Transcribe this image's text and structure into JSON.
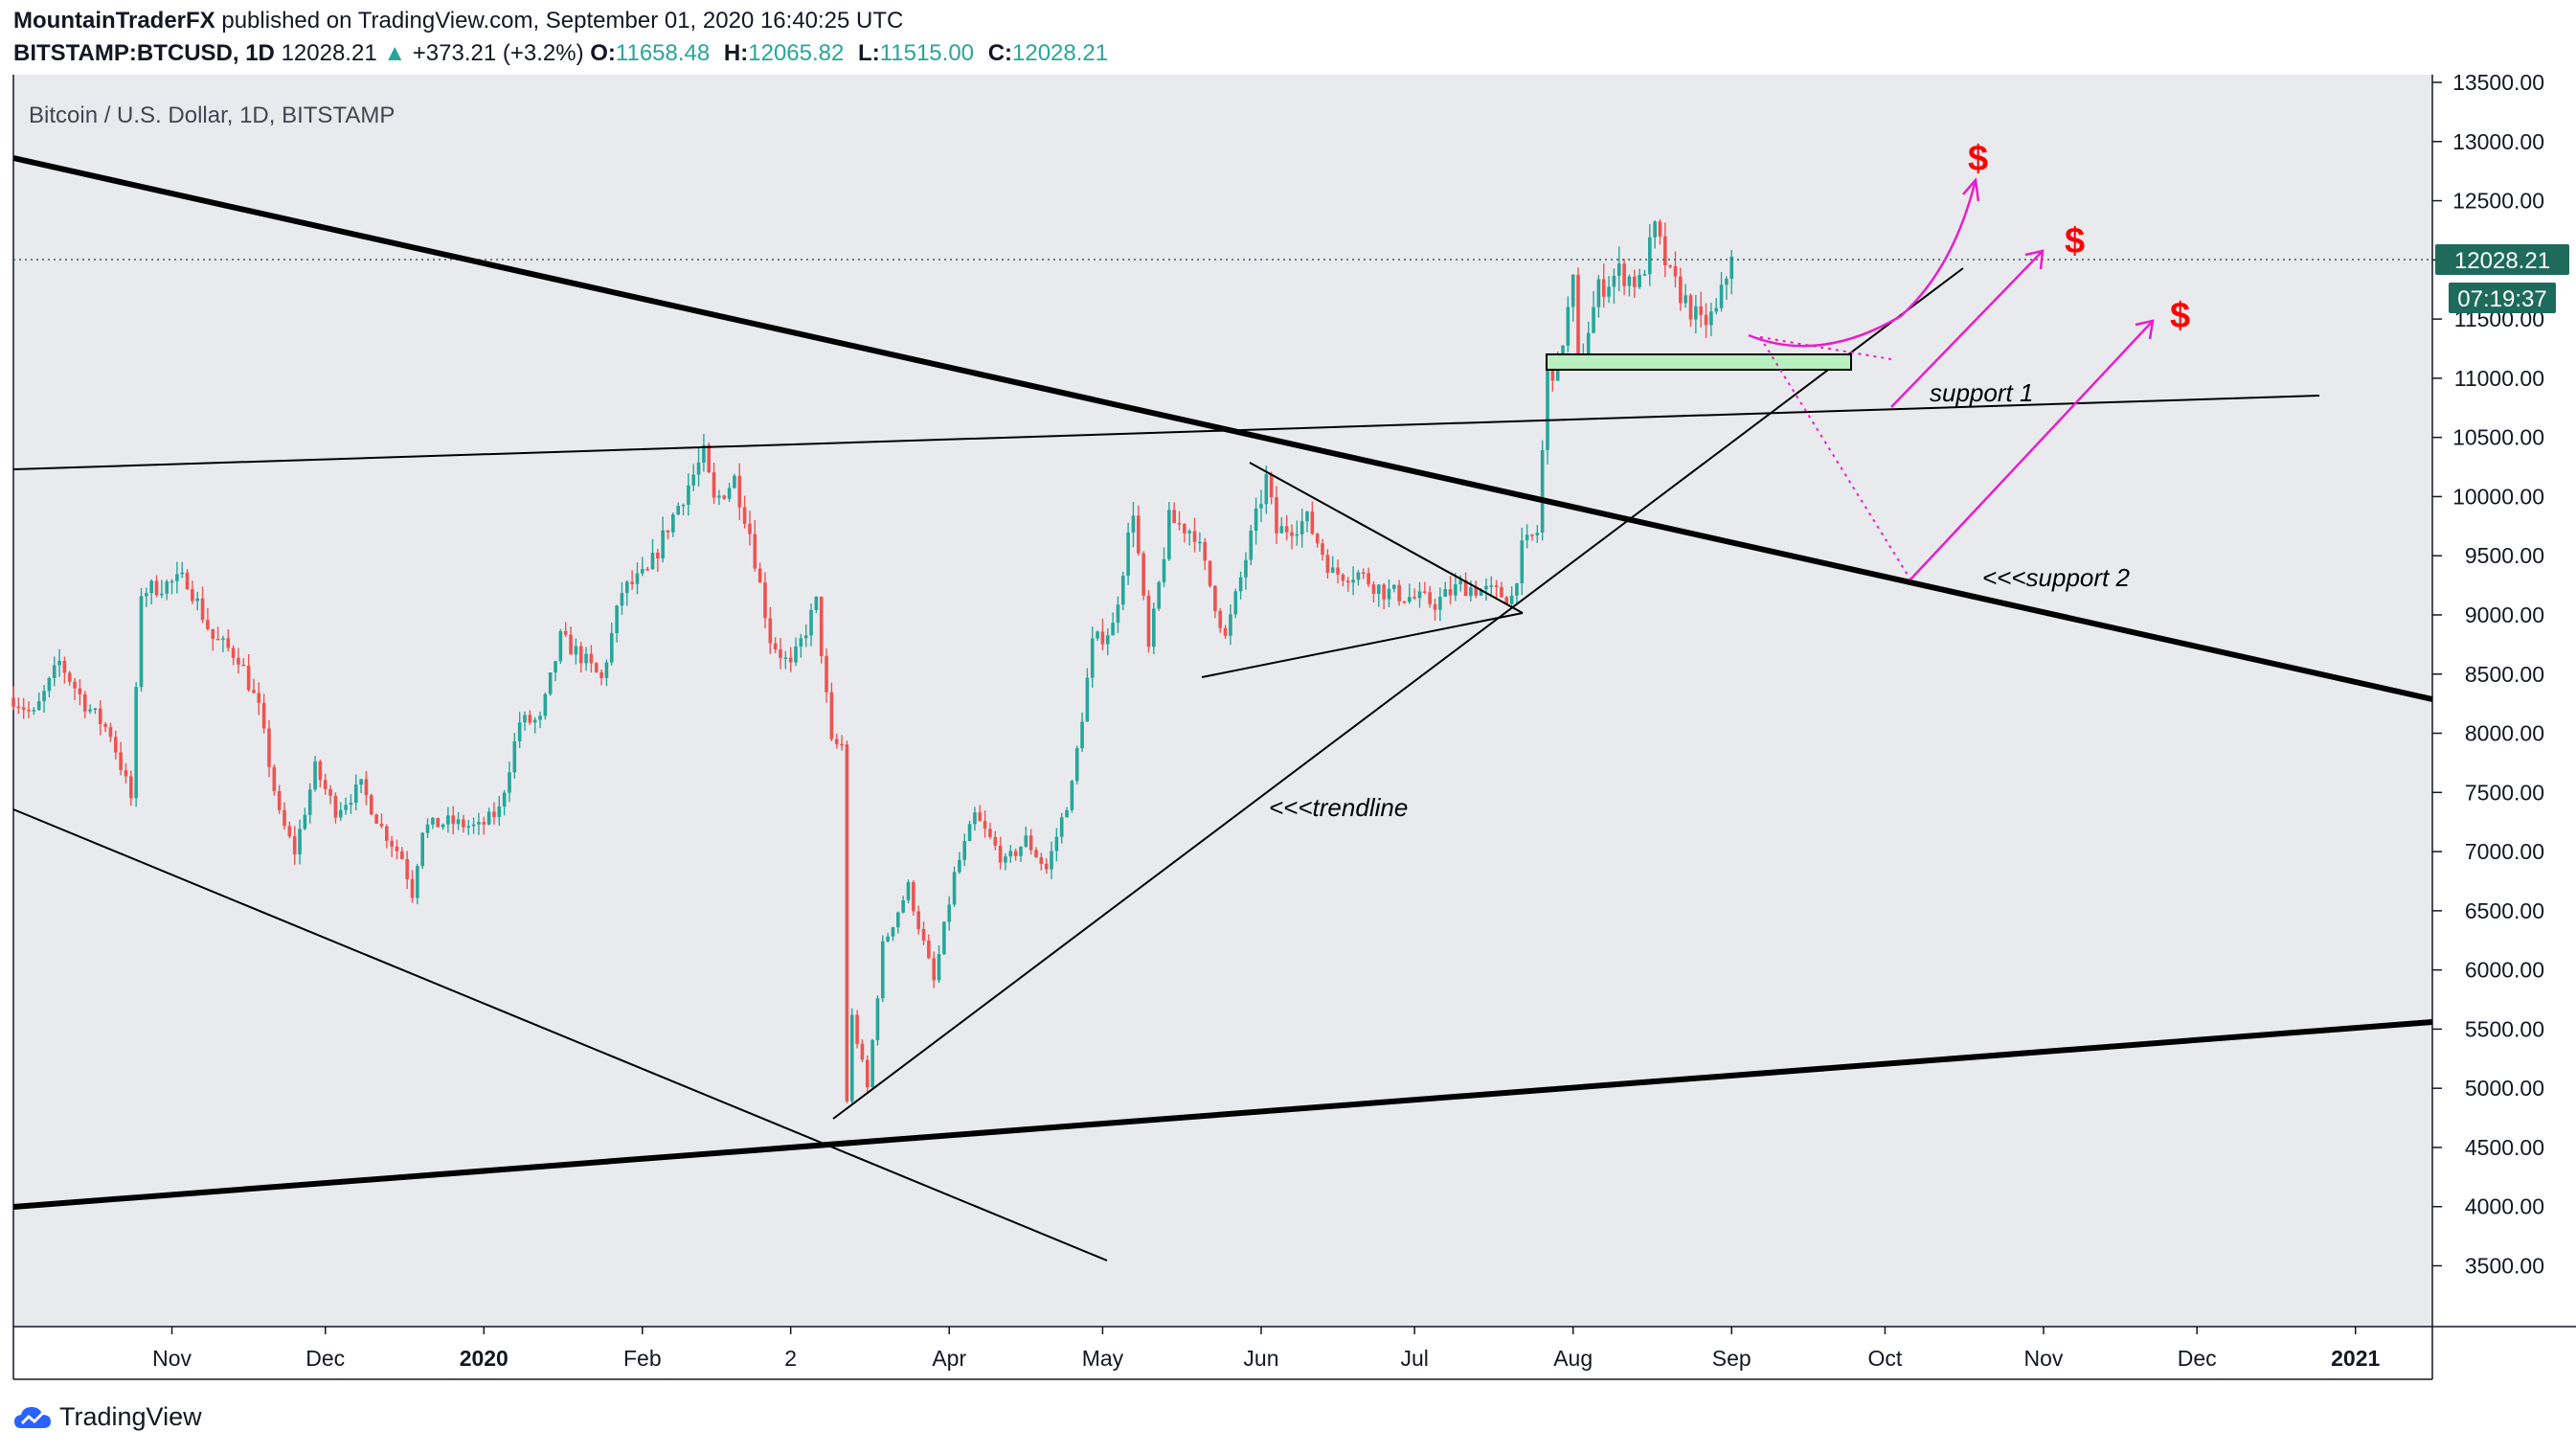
{
  "header": {
    "author": "MountainTraderFX",
    "published_text": "published on TradingView.com, September 01, 2020 16:40:25 UTC",
    "symbol": "BITSTAMP:BTCUSD, 1D",
    "last": "12028.21",
    "change": "+373.21 (+3.2%)",
    "open_label": "O:",
    "open": "11658.48",
    "high_label": "H:",
    "high": "12065.82",
    "low_label": "L:",
    "low": "11515.00",
    "close_label": "C:",
    "close": "12028.21"
  },
  "footer": {
    "brand": "TradingView"
  },
  "colors": {
    "background": "#e9eaee",
    "up": "#26a69a",
    "down": "#ef5350",
    "price_line": "#1e6b5c",
    "magenta": "#e91ec8",
    "target": "#ff0000",
    "support_zone": "#b9f0c0"
  },
  "chart_data": {
    "type": "candlestick",
    "title": "Bitcoin / U.S. Dollar, 1D, BITSTAMP",
    "ylim": [
      3000,
      13700
    ],
    "y_ticks": [
      "13500.00",
      "13000.00",
      "12500.00",
      "12000.00",
      "11500.00",
      "11000.00",
      "10500.00",
      "10000.00",
      "9500.00",
      "9000.00",
      "8500.00",
      "8000.00",
      "7500.00",
      "7000.00",
      "6500.00",
      "6000.00",
      "5500.00",
      "5000.00",
      "4500.00",
      "4000.00",
      "3500.00"
    ],
    "x_ticks": [
      "Nov",
      "Dec",
      "2020",
      "Feb",
      "2",
      "Apr",
      "May",
      "Jun",
      "Jul",
      "Aug",
      "Sep",
      "Oct",
      "Nov",
      "Dec",
      "2021"
    ],
    "last_price_label": "12028.21",
    "countdown_label": "07:19:37",
    "annotations": {
      "support1": "support 1",
      "support2": "<<<support 2",
      "trendline": "<<<trendline",
      "target": "$"
    },
    "price_path": [
      [
        "2019-10-01",
        8300
      ],
      [
        "2019-10-05",
        8150
      ],
      [
        "2019-10-10",
        8600
      ],
      [
        "2019-10-15",
        8250
      ],
      [
        "2019-10-20",
        8000
      ],
      [
        "2019-10-24",
        7450
      ],
      [
        "2019-10-26",
        9200
      ],
      [
        "2019-10-30",
        9250
      ],
      [
        "2019-11-04",
        9300
      ],
      [
        "2019-11-09",
        8800
      ],
      [
        "2019-11-14",
        8650
      ],
      [
        "2019-11-18",
        8200
      ],
      [
        "2019-11-22",
        7300
      ],
      [
        "2019-11-25",
        7000
      ],
      [
        "2019-11-29",
        7700
      ],
      [
        "2019-12-03",
        7350
      ],
      [
        "2019-12-08",
        7550
      ],
      [
        "2019-12-12",
        7200
      ],
      [
        "2019-12-16",
        6950
      ],
      [
        "2019-12-18",
        6650
      ],
      [
        "2019-12-20",
        7200
      ],
      [
        "2019-12-25",
        7250
      ],
      [
        "2019-12-31",
        7200
      ],
      [
        "2020-01-04",
        7350
      ],
      [
        "2020-01-08",
        8100
      ],
      [
        "2020-01-12",
        8100
      ],
      [
        "2020-01-16",
        8800
      ],
      [
        "2020-01-20",
        8650
      ],
      [
        "2020-01-24",
        8450
      ],
      [
        "2020-01-28",
        9200
      ],
      [
        "2020-02-02",
        9350
      ],
      [
        "2020-02-06",
        9750
      ],
      [
        "2020-02-10",
        10100
      ],
      [
        "2020-02-13",
        10350
      ],
      [
        "2020-02-15",
        9950
      ],
      [
        "2020-02-19",
        10150
      ],
      [
        "2020-02-22",
        9700
      ],
      [
        "2020-02-26",
        8800
      ],
      [
        "2020-03-01",
        8550
      ],
      [
        "2020-03-06",
        9100
      ],
      [
        "2020-03-09",
        7900
      ],
      [
        "2020-03-11",
        7900
      ],
      [
        "2020-03-12",
        4900
      ],
      [
        "2020-03-13",
        5600
      ],
      [
        "2020-03-16",
        5000
      ],
      [
        "2020-03-19",
        6200
      ],
      [
        "2020-03-24",
        6700
      ],
      [
        "2020-03-29",
        5900
      ],
      [
        "2020-04-02",
        6800
      ],
      [
        "2020-04-06",
        7300
      ],
      [
        "2020-04-12",
        6900
      ],
      [
        "2020-04-16",
        7100
      ],
      [
        "2020-04-20",
        6850
      ],
      [
        "2020-04-25",
        7550
      ],
      [
        "2020-04-29",
        8750
      ],
      [
        "2020-05-03",
        8900
      ],
      [
        "2020-05-07",
        9900
      ],
      [
        "2020-05-10",
        8700
      ],
      [
        "2020-05-14",
        9800
      ],
      [
        "2020-05-19",
        9700
      ],
      [
        "2020-05-25",
        8800
      ],
      [
        "2020-05-30",
        9650
      ],
      [
        "2020-06-02",
        10150
      ],
      [
        "2020-06-04",
        9700
      ],
      [
        "2020-06-10",
        9800
      ],
      [
        "2020-06-15",
        9350
      ],
      [
        "2020-06-20",
        9350
      ],
      [
        "2020-06-25",
        9200
      ],
      [
        "2020-06-30",
        9150
      ],
      [
        "2020-07-05",
        9100
      ],
      [
        "2020-07-10",
        9250
      ],
      [
        "2020-07-15",
        9200
      ],
      [
        "2020-07-20",
        9150
      ],
      [
        "2020-07-22",
        9550
      ],
      [
        "2020-07-25",
        9700
      ],
      [
        "2020-07-27",
        11050
      ],
      [
        "2020-07-29",
        11100
      ],
      [
        "2020-08-01",
        11800
      ],
      [
        "2020-08-02",
        11100
      ],
      [
        "2020-08-06",
        11750
      ],
      [
        "2020-08-10",
        11900
      ],
      [
        "2020-08-14",
        11800
      ],
      [
        "2020-08-17",
        12250
      ],
      [
        "2020-08-20",
        11850
      ],
      [
        "2020-08-23",
        11650
      ],
      [
        "2020-08-26",
        11450
      ],
      [
        "2020-08-29",
        11550
      ],
      [
        "2020-09-01",
        12028
      ]
    ]
  }
}
